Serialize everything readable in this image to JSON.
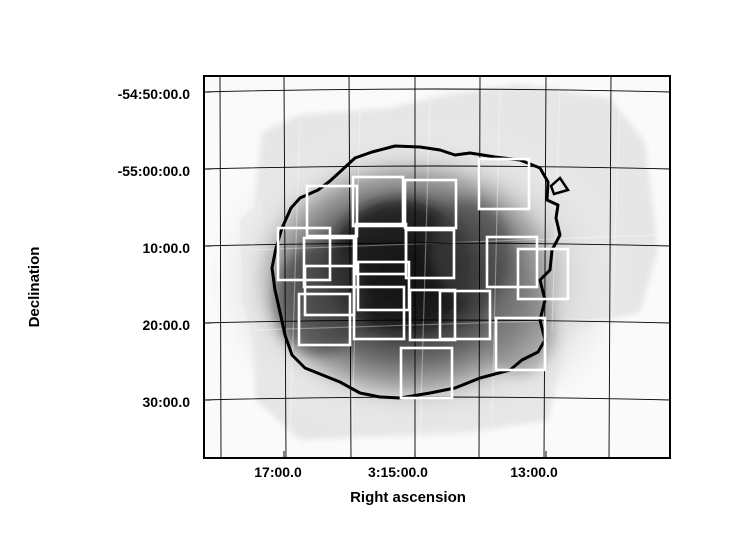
{
  "axes": {
    "xlabel": "Right ascension",
    "ylabel": "Declination",
    "x_ticks": [
      "17:00.0",
      "3:15:00.0",
      "13:00.0"
    ],
    "y_ticks": [
      "-54:50:00.0",
      "-55:00:00.0",
      "10:00.0",
      "20:00.0",
      "30:00.0"
    ]
  },
  "colors": {
    "background": "#ffffff",
    "frame": "#000000",
    "grid": "#000000",
    "contour": "#000000",
    "fields": "#ffffff",
    "intensity_peak": "#101010",
    "intensity_low": "#f2f2f2"
  },
  "image": {
    "type": "grayscale sky image with coordinate grid",
    "overlay_contour": "black outline",
    "overlay_fields": "white rectangles"
  }
}
